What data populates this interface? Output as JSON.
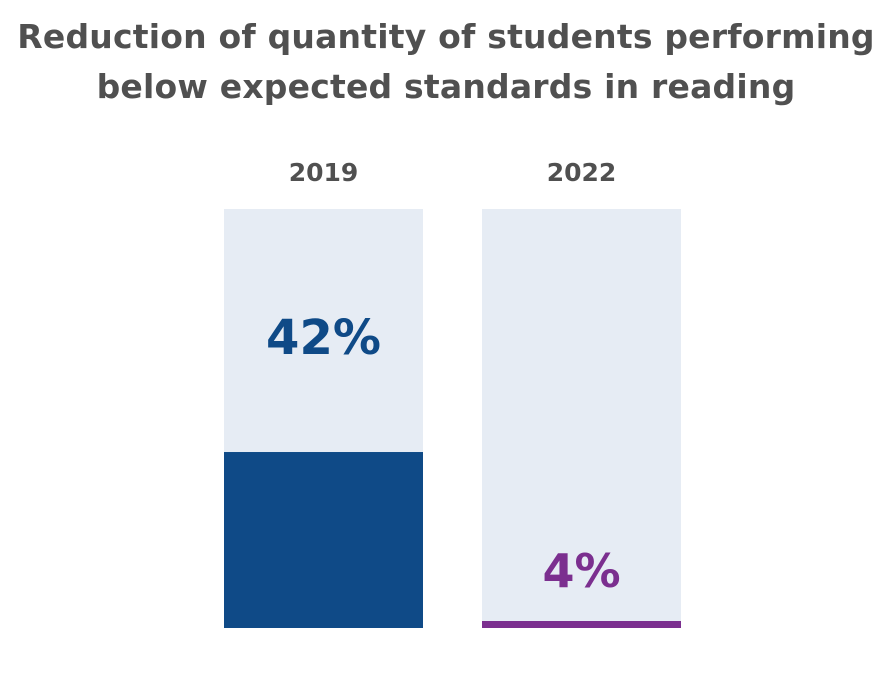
{
  "chart_data": {
    "type": "bar",
    "title_lines": [
      "Reduction of quantity of students performing",
      "below expected standards in reading"
    ],
    "categories": [
      "2019",
      "2022"
    ],
    "values": [
      42,
      4
    ],
    "value_labels": [
      "42%",
      "4%"
    ],
    "unit": "%",
    "ylim": [
      0,
      100
    ],
    "grid": false,
    "legend": "none",
    "colors": {
      "background_track": "#e6ecf4",
      "bar_2019": "#0f4a87",
      "bar_2022": "#7b2f8f",
      "text_title": "#505050",
      "text_year": "#505050"
    }
  }
}
